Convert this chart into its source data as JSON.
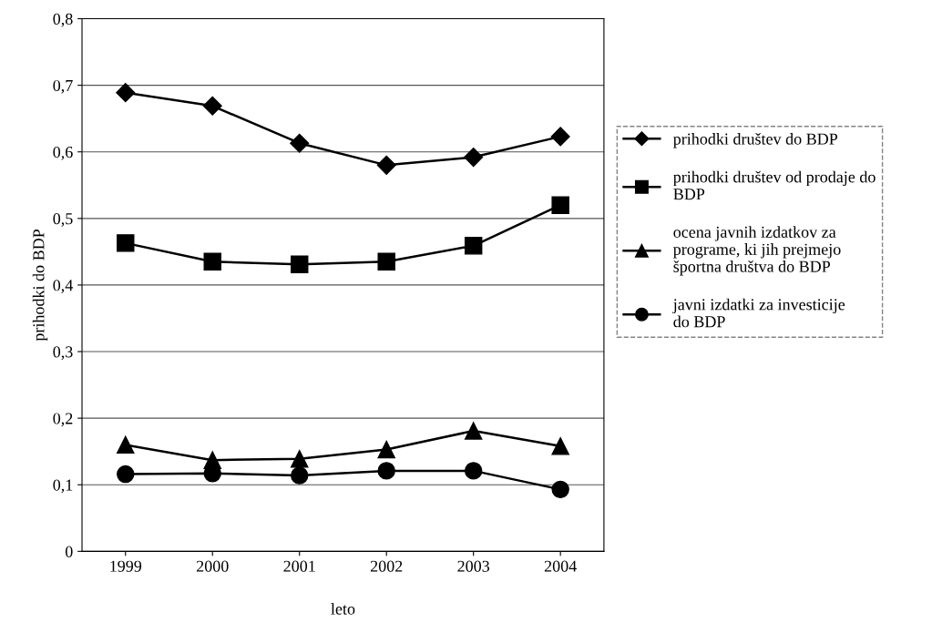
{
  "chart_data": {
    "type": "line",
    "xlabel": "leto",
    "ylabel": "prihodki do BDP",
    "categories": [
      "1999",
      "2000",
      "2001",
      "2002",
      "2003",
      "2004"
    ],
    "series": [
      {
        "name": "prihodki društev do BDP",
        "color": "#000000",
        "marker": "diamond",
        "values": [
          0.689,
          0.669,
          0.613,
          0.58,
          0.592,
          0.623
        ]
      },
      {
        "name": "prihodki društev od prodaje do BDP",
        "color": "#000000",
        "marker": "square",
        "values": [
          0.463,
          0.435,
          0.431,
          0.435,
          0.459,
          0.52
        ]
      },
      {
        "name": "ocena javnih izdatkov za programe, ki jih prejmejo športna društva do BDP",
        "color": "#000000",
        "marker": "triangle",
        "values": [
          0.16,
          0.137,
          0.139,
          0.153,
          0.181,
          0.158
        ]
      },
      {
        "name": "javni izdatki za investicije do BDP",
        "color": "#000000",
        "marker": "circle",
        "values": [
          0.116,
          0.117,
          0.114,
          0.121,
          0.121,
          0.093
        ]
      }
    ],
    "ylim": [
      0,
      0.8
    ],
    "yticks": [
      {
        "value": 0,
        "label": "0"
      },
      {
        "value": 0.1,
        "label": "0,1"
      },
      {
        "value": 0.2,
        "label": "0,2"
      },
      {
        "value": 0.3,
        "label": "0,3"
      },
      {
        "value": 0.4,
        "label": "0,4"
      },
      {
        "value": 0.5,
        "label": "0,5"
      },
      {
        "value": 0.6,
        "label": "0,6"
      },
      {
        "value": 0.7,
        "label": "0,7"
      },
      {
        "value": 0.8,
        "label": "0,8"
      }
    ],
    "grid": "y",
    "legend": "right",
    "line_style": "solid"
  }
}
